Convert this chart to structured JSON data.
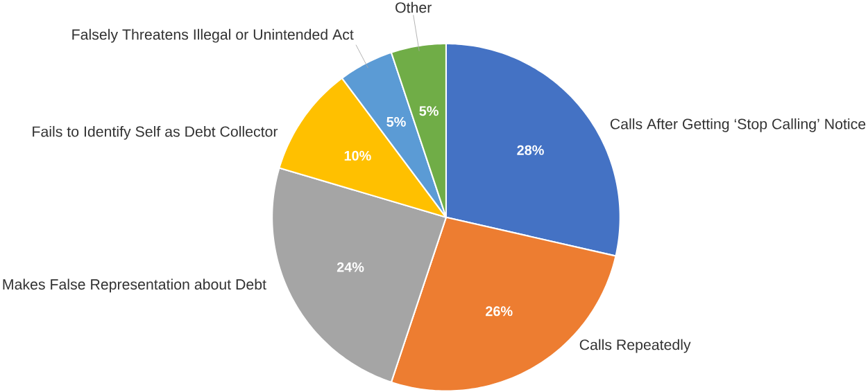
{
  "chart_data": {
    "type": "pie",
    "categories": [
      "Calls After Getting ‘Stop Calling’ Notice",
      "Calls Repeatedly",
      "Makes False Representation about Debt",
      "Fails to Identify Self as Debt Collector",
      "Falsely Threatens Illegal or Unintended Act",
      "Other"
    ],
    "values": [
      28,
      26,
      24,
      10,
      5,
      5
    ],
    "colors": [
      "#4472c4",
      "#ed7d31",
      "#a5a5a5",
      "#ffc000",
      "#5b9bd5",
      "#70ad47"
    ],
    "value_labels": [
      "28%",
      "26%",
      "24%",
      "10%",
      "5%",
      "5%"
    ]
  }
}
